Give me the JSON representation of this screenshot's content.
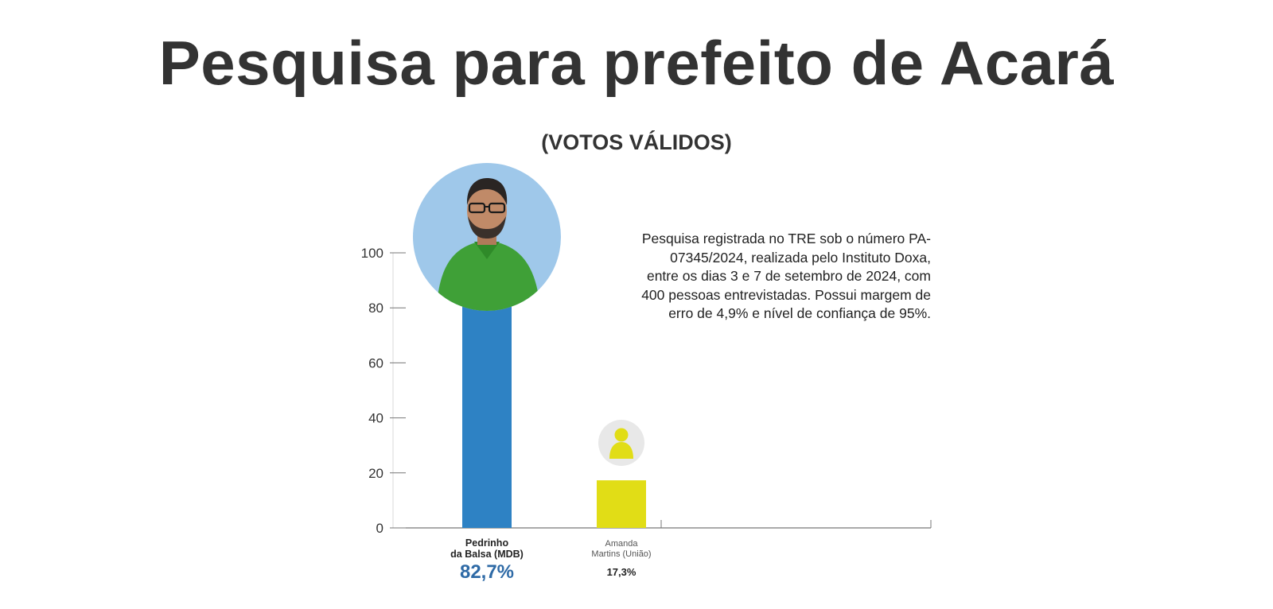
{
  "header": {
    "title": "Pesquisa para prefeito de Acará",
    "subtitle": "(VOTOS VÁLIDOS)"
  },
  "note": "Pesquisa registrada no TRE sob o número PA-07345/2024, realizada pelo Instituto Doxa, entre os dias 3 e 7 de setembro de 2024, com 400 pessoas entrevistadas. Possui margem de erro de 4,9% e nível de confiança de 95%.",
  "chart_data": {
    "type": "bar",
    "title": "Pesquisa para prefeito de Acará",
    "subtitle": "(VOTOS VÁLIDOS)",
    "categories": [
      "Pedrinho da Balsa (MDB)",
      "Amanda Martins (União)"
    ],
    "category_lines": [
      [
        "Pedrinho",
        "da Balsa (MDB)"
      ],
      [
        "Amanda",
        "Martins (União)"
      ]
    ],
    "values": [
      82.7,
      17.3
    ],
    "value_labels": [
      "82,7%",
      "17,3%"
    ],
    "colors": [
      "#2e82c4",
      "#e1dd16"
    ],
    "value_label_colors": [
      "#2e6aa6",
      "#222222"
    ],
    "ylim": [
      0,
      100
    ],
    "yticks": [
      0,
      20,
      40,
      60,
      80,
      100
    ],
    "xlabel": "",
    "ylabel": "",
    "grid": false,
    "legend": "none"
  },
  "candidates": [
    {
      "name": "Pedrinho da Balsa (MDB)",
      "avatar": "candidate-photo",
      "avatar_bg": "#9fc8ea"
    },
    {
      "name": "Amanda Martins (União)",
      "avatar": "person-placeholder-icon",
      "avatar_bg": "#e8e8e8",
      "icon_color": "#e1dd16"
    }
  ]
}
